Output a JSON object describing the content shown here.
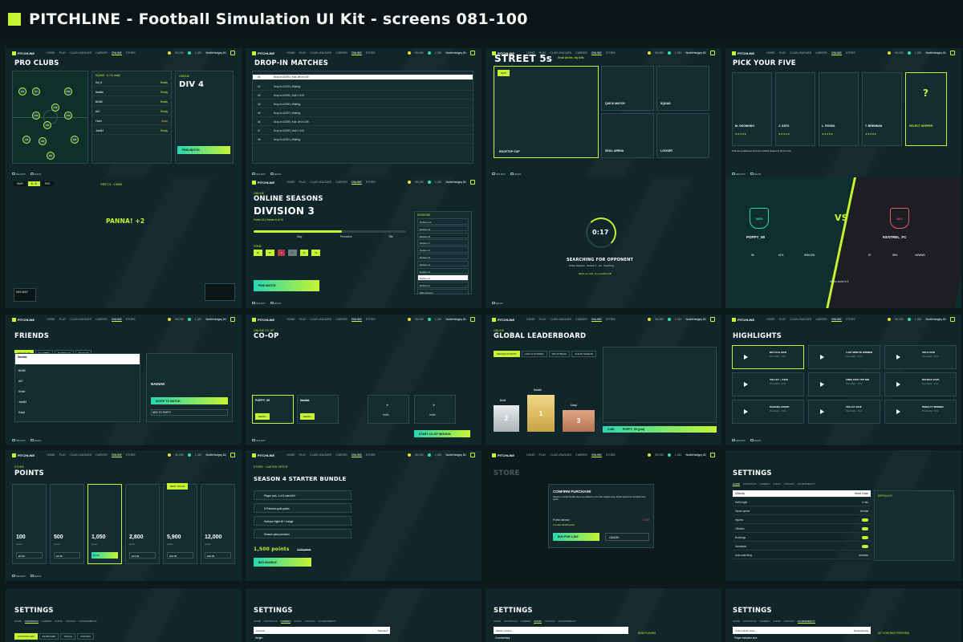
{
  "header": {
    "title": "PITCHLINE  -  Football Simulation UI Kit  -  screens 081-100"
  },
  "nav": {
    "logo": "PITCHLINE",
    "items": [
      "HOME",
      "PLAY",
      "CLUB LEAGUES",
      "CAREER",
      "ONLINE",
      "STORE"
    ],
    "coins": "98,250",
    "gems": "1,381",
    "player": "NorthHedgey 81"
  },
  "footer": {
    "select": "SELECT",
    "back": "BACK",
    "options": "OPTIONS"
  },
  "s1": {
    "title": "PRO CLUBS",
    "league": "DIV 4",
    "btn": "FIND MATCH",
    "members": [
      "Sol_8",
      "Nadiak",
      "Bri4ID",
      "Ari7",
      "Florie",
      "Juks52"
    ],
    "roles": [
      "Ready",
      "Ready",
      "Ready",
      "Ready",
      "Away",
      "Ready"
    ]
  },
  "s2": {
    "title": "DROP-IN MATCHES",
    "rows": [
      "Drop-in #2291 | Kick off in 0:40",
      "Drop-in #2294 | Waiting",
      "Drop-in #2295 | Half 1 0:00",
      "Drop-in #2296 | Waiting",
      "Drop-in #2297 | Waiting",
      "Drop-in #2298 | Kick off in 0:55",
      "Drop-in #2299 | Half 1 0:00",
      "Drop-in #2301 | Waiting"
    ]
  },
  "s3": {
    "title": "STREET 5s",
    "sub": "Small pitches, big skills",
    "cards": [
      "ROOFTOP CUP",
      "QUICK MATCH",
      "SQUAD",
      "SKILL ARENA",
      "LOCKER"
    ],
    "badge": "NEW"
  },
  "s4": {
    "title": "PICK YOUR FIVE",
    "players": [
      "M. OKONKWO",
      "J. SATO",
      "L. ROSSA",
      "T. BRENNAN"
    ],
    "select": "SELECT KEEPER",
    "hint": "Pick one goalkeeper and four outfield players to fill your five.",
    "q": "?"
  },
  "s5": {
    "home": "HUH",
    "score": "4 - 2",
    "away": "SVK",
    "status": "PANNA! +2",
    "time": "FIRST 21 - 3 MINS",
    "minimap": "MINI-MAP"
  },
  "s6": {
    "eyebrow": "ONLINE",
    "title": "ONLINE SEASONS",
    "div": "DIVISION 3",
    "points": "Points 16 | Games 5 of 10",
    "btn": "FIND MATCH",
    "form": "FORM",
    "results": [
      "W",
      "W",
      "L",
      "D",
      "W",
      "W"
    ],
    "divs": [
      "Division 10",
      "Division 9",
      "Division 8",
      "Division 7",
      "Division 6",
      "Division 5",
      "Division 4",
      "Division 3",
      "Division 2",
      "Division 1",
      "Elite division"
    ],
    "marks": [
      "Stay",
      "Promotion",
      "Title"
    ]
  },
  "s7": {
    "timer": "0:17",
    "status": "SEARCHING FOR OPPONENT",
    "sub": "Online Seasons · Division 3 · EU · Searching",
    "cancel": "While you wait, try a practice drill"
  },
  "s8": {
    "home": "NER",
    "away": "ALV",
    "vs": "VS",
    "p1": "POPPY_09",
    "p2": "KESTREL_FC",
    "s1": [
      "96",
      "61%",
      "WWLDW"
    ],
    "s2": [
      "87",
      "58%",
      "LWWWD"
    ],
    "kick": "Match starts in 5"
  },
  "s9": {
    "title": "FRIENDS",
    "tabs": [
      "ONLINE (8)",
      "IN-LOBBY",
      "INVITES (2)",
      "RECENT"
    ],
    "friends": [
      "Nadiak",
      "Bri4ID",
      "Ari7",
      "Sonia",
      "Juks52",
      "Kasyl"
    ],
    "btn": "INVITE TO MATCH",
    "card": "NADIAK",
    "add": "ADD TO PARTY"
  },
  "s10": {
    "eyebrow": "ONLINE CO-OP",
    "title": "CO-OP",
    "p1": "POPPY_09",
    "p2": "Nadiak",
    "ready": "READY",
    "invite": "Invite",
    "btn": "START CO-OP SEASON"
  },
  "s11": {
    "eyebrow": "ONLINE",
    "title": "GLOBAL LEADERBOARD",
    "tabs": [
      "SEASON POINTS",
      "GOALS SCORED",
      "WIN STREAK",
      "CLEAN SHEETS"
    ],
    "podium": [
      "2",
      "1",
      "3"
    ],
    "names": [
      "Brix8",
      "Nadiak",
      "Kasyl"
    ],
    "you": "POPPY_09 (you)",
    "rank": "2,461",
    "score": "1,300"
  },
  "s12": {
    "title": "HIGHLIGHTS",
    "clips": [
      "BICYCLE KICK",
      "LAST MINUTE WINNER",
      "SOLO RUN",
      "VOLLEY + SAVE",
      "FREE KICK TOP BIN",
      "DOUBLE SAVE",
      "RABONA ASSIST",
      "VOLLEY 2018",
      "PENALTY WINNER"
    ]
  },
  "s13": {
    "eyebrow": "STORE",
    "title": "POINTS",
    "packs": [
      "100",
      "500",
      "1,050",
      "2,800",
      "5,900",
      "12,000"
    ],
    "prices": [
      "£0.99",
      "£4.99",
      "£9.99",
      "£24.99",
      "£49.99",
      "£99.99"
    ],
    "best": "BEST VALUE"
  },
  "s14": {
    "eyebrow": "STORE · LIMITED OFFER",
    "title": "SEASON 4 STARTER BUNDLE",
    "items": [
      "Player pick: 1 of 3 rated 84+",
      "3 Premium gold packs",
      "Harbour Night kit + badge",
      "Season pass premium"
    ],
    "price": "1,500 points",
    "was": "2,100 points",
    "btn": "BUY BUNDLE"
  },
  "s15": {
    "bg": "STORE",
    "title": "CONFIRM PURCHASE",
    "body": "Season 4 starter bundle: items are added to your club straight away. Points cannot be refunded once spent.",
    "lbl": "Points balance",
    "val": "1,500",
    "btn": "BUY FOR 1,500",
    "cancel": "CANCEL",
    "bal": "You have 98 250 points"
  },
  "s16": {
    "title": "SETTINGS",
    "tabs": [
      "GAME",
      "CONTROLS",
      "CAMERA",
      "AUDIO",
      "VISUALS",
      "ACCESSIBILITY"
    ],
    "rows": [
      "Difficulty",
      "Half length",
      "Game speed",
      "Injuries",
      "Offsides",
      "Bookings",
      "Handballs",
      "Auto-switching"
    ],
    "vals": [
      "World Class",
      "6 min",
      "Normal",
      "",
      "",
      "",
      "",
      "Assisted"
    ],
    "info": "DIFFICULTY"
  },
  "s17": {
    "title": "SETTINGS",
    "tabs": [
      "GAME",
      "CONTROLS",
      "CAMERA",
      "AUDIO",
      "VISUALS",
      "ACCESSIBILITY"
    ],
    "pills": [
      "CONTROLLER",
      "KEYBOARD",
      "TOUCH",
      "CUSTOM"
    ]
  },
  "s18": {
    "title": "SETTINGS",
    "tabs": [
      "GAME",
      "CONTROLS",
      "CAMERA",
      "AUDIO",
      "VISUALS",
      "ACCESSIBILITY"
    ],
    "rows": [
      "Camera",
      "Height"
    ],
    "vals": [
      "Standard",
      ""
    ]
  },
  "s19": {
    "title": "SETTINGS",
    "tabs": [
      "GAME",
      "CONTROLS",
      "CAMERA",
      "AUDIO",
      "VISUALS",
      "ACCESSIBILITY"
    ],
    "rows": [
      "Master volume",
      "Commentary"
    ],
    "side": "NOW PLAYING"
  },
  "s20": {
    "title": "SETTINGS",
    "tabs": [
      "GAME",
      "CONTROLS",
      "CAMERA",
      "AUDIO",
      "VISUALS",
      "ACCESSIBILITY"
    ],
    "rows": [
      "Colour-blind mode",
      "Player indicator size"
    ],
    "vals": [
      "Deuteranopia",
      "Large"
    ],
    "side": "KIT CONTRAST PREVIEW"
  }
}
